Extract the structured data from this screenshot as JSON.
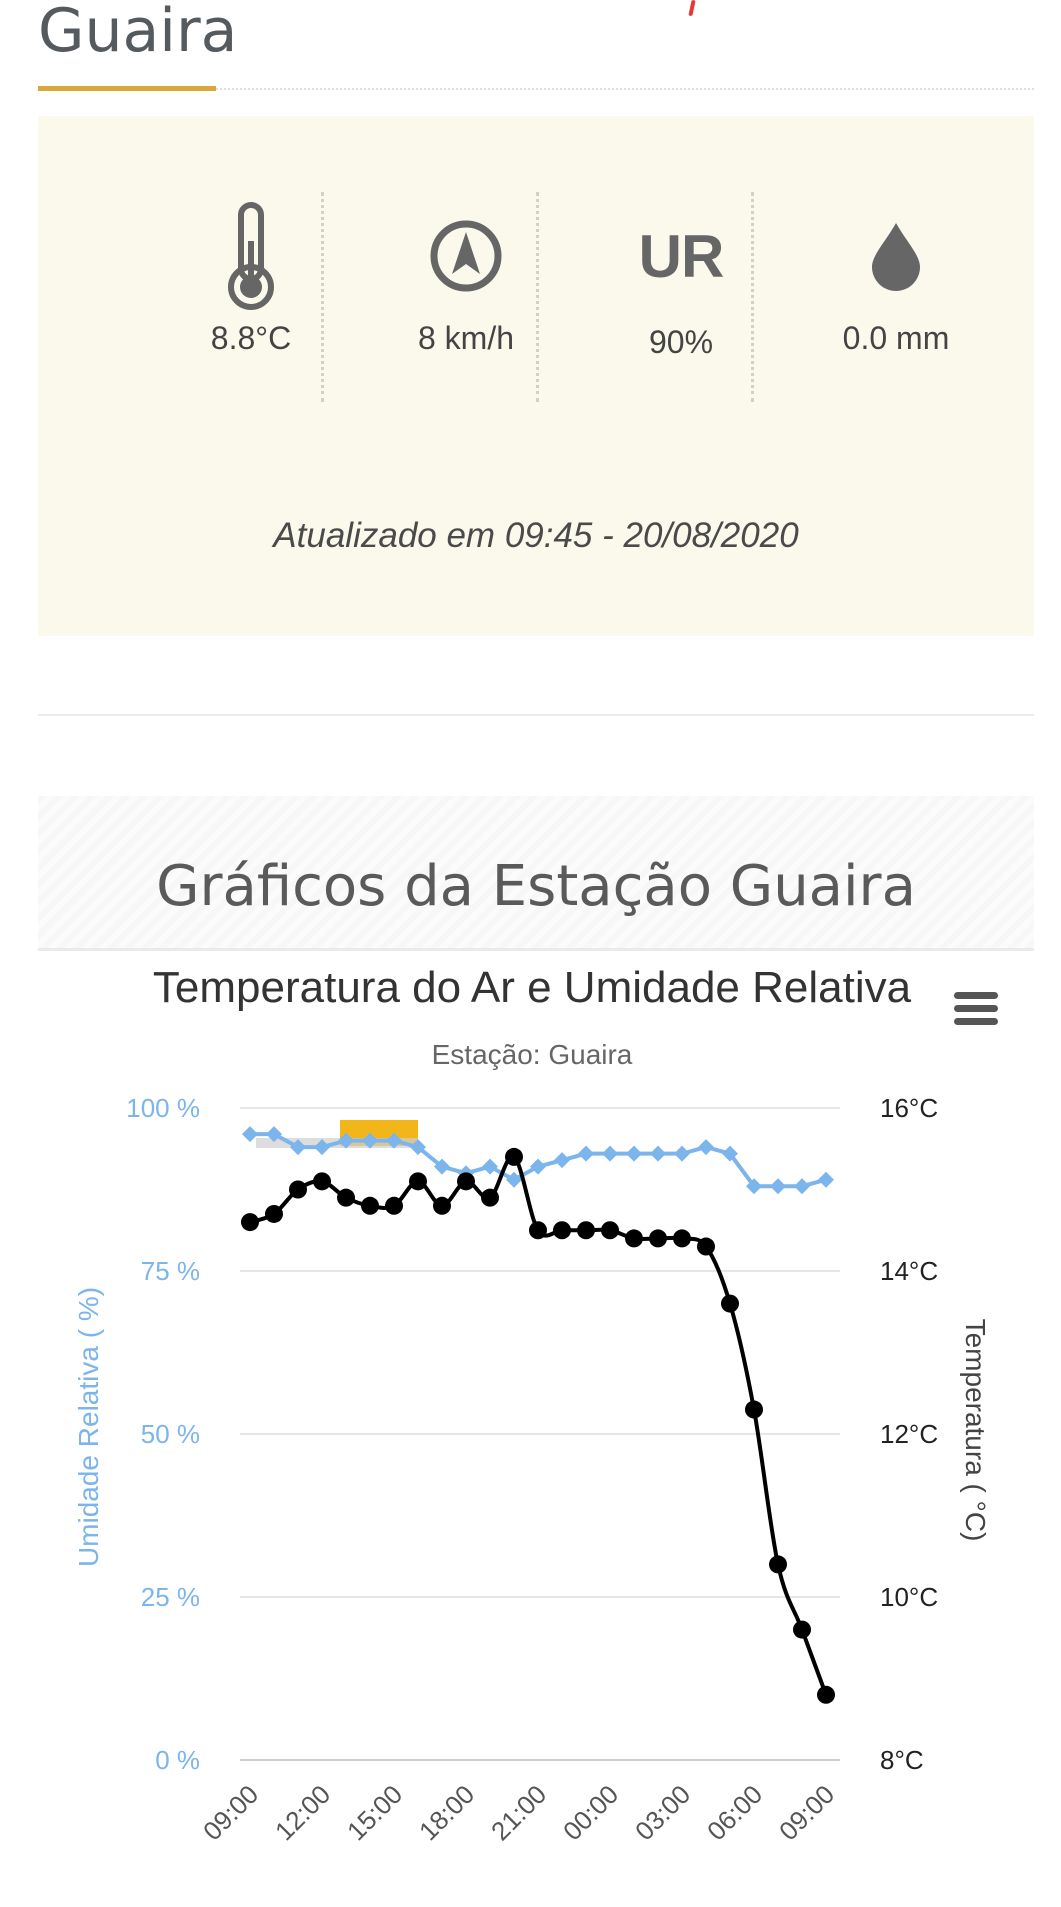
{
  "station": {
    "title": "Guaira"
  },
  "current": {
    "temperature": "8.8°C",
    "wind": "8 km/h",
    "humidity_label": "UR",
    "humidity": "90%",
    "rain": "0.0 mm",
    "updated": "Atualizado em 09:45 - 20/08/2020"
  },
  "icons": {
    "temperature": "thermometer-icon",
    "wind": "wind-direction-icon",
    "rain": "raindrop-icon",
    "menu": "hamburger-menu-icon"
  },
  "section": {
    "title": "Gráficos da Estação Guaira"
  },
  "colors": {
    "accent": "#d8a93a",
    "panel_bg": "#fbf8ec",
    "humidity_series": "#7cb5ec",
    "temperature_series": "#000000"
  },
  "chart_data": {
    "type": "line",
    "title": "Temperatura do Ar e Umidade Relativa",
    "subtitle": "Estação: Guaira",
    "x_tick_labels": [
      "09:00",
      "12:00",
      "15:00",
      "18:00",
      "21:00",
      "00:00",
      "03:00",
      "06:00",
      "09:00"
    ],
    "x": [
      "09:00",
      "10:00",
      "11:00",
      "12:00",
      "13:00",
      "14:00",
      "15:00",
      "16:00",
      "17:00",
      "18:00",
      "19:00",
      "20:00",
      "21:00",
      "22:00",
      "23:00",
      "00:00",
      "01:00",
      "02:00",
      "03:00",
      "04:00",
      "05:00",
      "06:00",
      "07:00",
      "08:00",
      "09:00"
    ],
    "y_left": {
      "label": "Umidade Relativa ( %)",
      "ticks": [
        "0 %",
        "25 %",
        "50 %",
        "75 %",
        "100 %"
      ],
      "range": [
        0,
        100
      ]
    },
    "y_right": {
      "label": "Temperatura ( °C)",
      "ticks": [
        "8°C",
        "10°C",
        "12°C",
        "14°C",
        "16°C"
      ],
      "range": [
        8,
        16
      ]
    },
    "grid": true,
    "series": [
      {
        "name": "",
        "axis": "left",
        "marker": "diamond",
        "values": [
          96,
          96,
          94,
          94,
          95,
          95,
          95,
          94,
          91,
          90,
          91,
          89,
          91,
          92,
          93,
          93,
          93,
          93,
          93,
          94,
          93,
          88,
          88,
          88,
          89
        ]
      },
      {
        "name": "",
        "axis": "right",
        "marker": "circle",
        "values": [
          14.6,
          14.7,
          15.0,
          15.1,
          14.9,
          14.8,
          14.8,
          15.1,
          14.8,
          15.1,
          14.9,
          15.4,
          14.5,
          14.5,
          14.5,
          14.5,
          14.4,
          14.4,
          14.4,
          14.3,
          13.6,
          12.3,
          10.4,
          9.6,
          8.8
        ]
      }
    ]
  }
}
